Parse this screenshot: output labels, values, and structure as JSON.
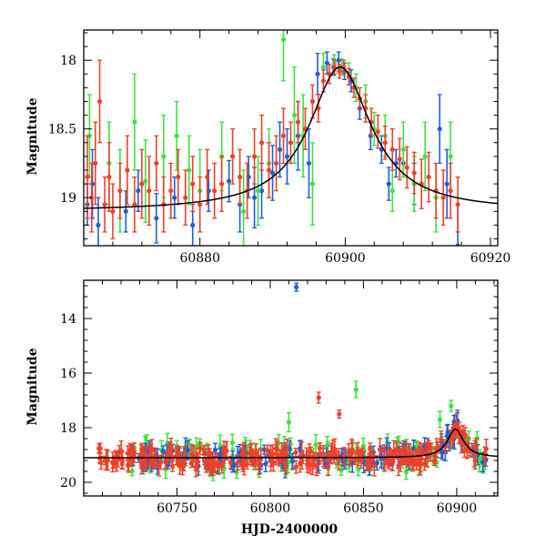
{
  "chart_data": [
    {
      "type": "scatter",
      "title": "",
      "xlabel": "",
      "ylabel": "Magnitude",
      "xlim": [
        60864,
        60921
      ],
      "ylim": [
        19.35,
        17.78
      ],
      "y_inverted": true,
      "xticks": [
        60880,
        60900,
        60920
      ],
      "yticks": [
        18,
        18.5,
        19
      ],
      "grid": false,
      "legend": "none",
      "series_colors": {
        "blue": "#1f5fd6",
        "green": "#3ee23e",
        "red": "#f0402a",
        "model": "#000000"
      },
      "series": [
        {
          "color": "blue",
          "points": [
            [
              60864.5,
              19.05,
              0.15
            ],
            [
              60865.2,
              18.9,
              0.25
            ],
            [
              60866.0,
              19.2,
              0.2
            ],
            [
              60869.8,
              19.1,
              0.15
            ],
            [
              60871.5,
              18.95,
              0.15
            ],
            [
              60874.0,
              19.15,
              0.18
            ],
            [
              60876.5,
              19.0,
              0.15
            ],
            [
              60879.0,
              19.2,
              0.15
            ],
            [
              60881.2,
              18.95,
              0.15
            ],
            [
              60884.0,
              18.88,
              0.15
            ],
            [
              60885.5,
              19.05,
              0.2
            ],
            [
              60886.7,
              18.85,
              0.15
            ],
            [
              60887.5,
              19.0,
              0.22
            ],
            [
              60888.5,
              18.95,
              0.2
            ],
            [
              60890.0,
              18.82,
              0.2
            ],
            [
              60891.0,
              18.65,
              0.2
            ],
            [
              60892.0,
              18.7,
              0.2
            ],
            [
              60893.5,
              18.55,
              0.25
            ],
            [
              60895.0,
              18.75,
              0.25
            ],
            [
              60896.2,
              18.1,
              0.15
            ],
            [
              60897.5,
              18.02,
              0.08
            ],
            [
              60898.4,
              18.05,
              0.06
            ],
            [
              60899.1,
              18.0,
              0.06
            ],
            [
              60899.9,
              18.08,
              0.06
            ],
            [
              60900.8,
              18.15,
              0.08
            ],
            [
              60902.0,
              18.35,
              0.08
            ],
            [
              60903.5,
              18.55,
              0.1
            ],
            [
              60905.0,
              18.65,
              0.1
            ],
            [
              60906.0,
              18.9,
              0.12
            ],
            [
              60907.0,
              18.75,
              0.1
            ],
            [
              60908.0,
              18.75,
              0.1
            ],
            [
              60909.5,
              18.9,
              0.15
            ],
            [
              60913.0,
              18.5,
              0.25
            ],
            [
              60914.0,
              18.9,
              0.25
            ],
            [
              60915.5,
              19.35,
              0.3
            ]
          ]
        },
        {
          "color": "green",
          "points": [
            [
              60864.8,
              18.55,
              0.3
            ],
            [
              60867.5,
              18.75,
              0.3
            ],
            [
              60869.0,
              18.95,
              0.3
            ],
            [
              60871.0,
              18.45,
              0.35
            ],
            [
              60872.5,
              18.88,
              0.3
            ],
            [
              60875.0,
              18.7,
              0.3
            ],
            [
              60876.8,
              18.55,
              0.25
            ],
            [
              60878.5,
              18.8,
              0.25
            ],
            [
              60880.0,
              18.95,
              0.3
            ],
            [
              60883.0,
              18.7,
              0.25
            ],
            [
              60886.0,
              19.1,
              0.3
            ],
            [
              60888.0,
              18.95,
              0.25
            ],
            [
              60889.5,
              18.75,
              0.25
            ],
            [
              60891.5,
              17.85,
              0.3
            ],
            [
              60893.0,
              18.4,
              0.35
            ],
            [
              60894.2,
              18.55,
              0.3
            ],
            [
              60895.5,
              18.9,
              0.3
            ],
            [
              60897.0,
              18.05,
              0.1
            ],
            [
              60898.5,
              18.02,
              0.06
            ],
            [
              60899.5,
              18.05,
              0.06
            ],
            [
              60900.5,
              18.1,
              0.08
            ],
            [
              60901.5,
              18.2,
              0.1
            ],
            [
              60902.8,
              18.3,
              0.12
            ],
            [
              60904.0,
              18.5,
              0.12
            ],
            [
              60905.5,
              18.55,
              0.15
            ],
            [
              60906.5,
              18.95,
              0.15
            ],
            [
              60908.0,
              18.65,
              0.2
            ],
            [
              60909.5,
              18.9,
              0.2
            ],
            [
              60911.0,
              18.7,
              0.25
            ],
            [
              60912.5,
              19.0,
              0.25
            ],
            [
              60914.5,
              18.7,
              0.25
            ]
          ]
        },
        {
          "color": "red",
          "points": [
            [
              60864.5,
              18.85,
              0.3
            ],
            [
              60865.1,
              19.0,
              0.25
            ],
            [
              60865.6,
              18.75,
              0.3
            ],
            [
              60866.2,
              18.3,
              0.3
            ],
            [
              60866.9,
              19.05,
              0.2
            ],
            [
              60867.5,
              18.85,
              0.25
            ],
            [
              60868.0,
              19.1,
              0.2
            ],
            [
              60869.0,
              18.95,
              0.2
            ],
            [
              60870.0,
              18.8,
              0.25
            ],
            [
              60871.0,
              19.05,
              0.2
            ],
            [
              60872.0,
              18.9,
              0.25
            ],
            [
              60873.0,
              18.95,
              0.25
            ],
            [
              60874.0,
              18.75,
              0.2
            ],
            [
              60875.0,
              19.05,
              0.2
            ],
            [
              60876.0,
              18.95,
              0.2
            ],
            [
              60877.0,
              18.85,
              0.2
            ],
            [
              60878.0,
              19.0,
              0.2
            ],
            [
              60879.0,
              18.9,
              0.2
            ],
            [
              60880.0,
              19.05,
              0.2
            ],
            [
              60881.0,
              18.85,
              0.2
            ],
            [
              60882.0,
              18.95,
              0.2
            ],
            [
              60883.0,
              18.9,
              0.2
            ],
            [
              60884.5,
              18.7,
              0.2
            ],
            [
              60885.5,
              18.85,
              0.2
            ],
            [
              60886.5,
              18.95,
              0.2
            ],
            [
              60887.5,
              18.7,
              0.2
            ],
            [
              60888.5,
              18.6,
              0.2
            ],
            [
              60889.5,
              18.8,
              0.2
            ],
            [
              60890.5,
              18.75,
              0.2
            ],
            [
              60891.5,
              18.55,
              0.2
            ],
            [
              60892.5,
              18.6,
              0.15
            ],
            [
              60893.5,
              18.45,
              0.15
            ],
            [
              60894.5,
              18.5,
              0.15
            ],
            [
              60895.5,
              18.3,
              0.12
            ],
            [
              60896.3,
              18.35,
              0.1
            ],
            [
              60897.0,
              18.15,
              0.08
            ],
            [
              60897.8,
              18.1,
              0.07
            ],
            [
              60898.5,
              18.05,
              0.05
            ],
            [
              60899.2,
              18.08,
              0.05
            ],
            [
              60899.8,
              18.05,
              0.05
            ],
            [
              60900.5,
              18.12,
              0.06
            ],
            [
              60901.2,
              18.2,
              0.07
            ],
            [
              60902.0,
              18.28,
              0.08
            ],
            [
              60902.8,
              18.35,
              0.1
            ],
            [
              60903.6,
              18.45,
              0.1
            ],
            [
              60904.5,
              18.52,
              0.12
            ],
            [
              60905.5,
              18.6,
              0.12
            ],
            [
              60906.5,
              18.65,
              0.15
            ],
            [
              60907.5,
              18.72,
              0.15
            ],
            [
              60908.5,
              18.78,
              0.15
            ],
            [
              60909.5,
              18.82,
              0.15
            ],
            [
              60910.5,
              18.9,
              0.18
            ],
            [
              60911.5,
              18.85,
              0.18
            ],
            [
              60912.5,
              18.95,
              0.2
            ],
            [
              60913.5,
              19.0,
              0.2
            ],
            [
              60914.5,
              18.95,
              0.2
            ],
            [
              60915.5,
              19.05,
              0.2
            ]
          ]
        }
      ],
      "model_curve": {
        "peak_x": 60899.3,
        "peak_y": 18.05,
        "baseline_y": 19.1,
        "width": 5.2
      }
    },
    {
      "type": "scatter",
      "title": "",
      "xlabel": "HJD-2400000",
      "ylabel": "Magnitude",
      "xlim": [
        60700,
        60922
      ],
      "ylim": [
        20.5,
        12.6
      ],
      "y_inverted": true,
      "xticks": [
        60750,
        60800,
        60850,
        60900
      ],
      "yticks": [
        14,
        16,
        18,
        20
      ],
      "grid": false,
      "legend": "none",
      "series_colors": {
        "blue": "#1f5fd6",
        "green": "#3ee23e",
        "red": "#f0402a",
        "model": "#000000"
      },
      "outliers": [
        {
          "color": "blue",
          "x": 60814,
          "y": 12.85,
          "err": 0.15
        },
        {
          "color": "red",
          "x": 60826,
          "y": 16.9,
          "err": 0.2
        },
        {
          "color": "red",
          "x": 60837,
          "y": 17.5,
          "err": 0.15
        },
        {
          "color": "green",
          "x": 60846,
          "y": 16.6,
          "err": 0.3
        },
        {
          "color": "green",
          "x": 60810,
          "y": 17.8,
          "err": 0.35
        },
        {
          "color": "green",
          "x": 60891,
          "y": 17.7,
          "err": 0.3
        },
        {
          "color": "green",
          "x": 60897,
          "y": 17.2,
          "err": 0.2
        }
      ],
      "bulk_description_range": {
        "x": [
          60708,
          60916
        ],
        "baseline_y": 19.1,
        "scatter": 0.35
      },
      "model_curve": {
        "peak_x": 60899.3,
        "peak_y": 18.05,
        "baseline_y": 19.1,
        "width": 5.2
      }
    }
  ]
}
